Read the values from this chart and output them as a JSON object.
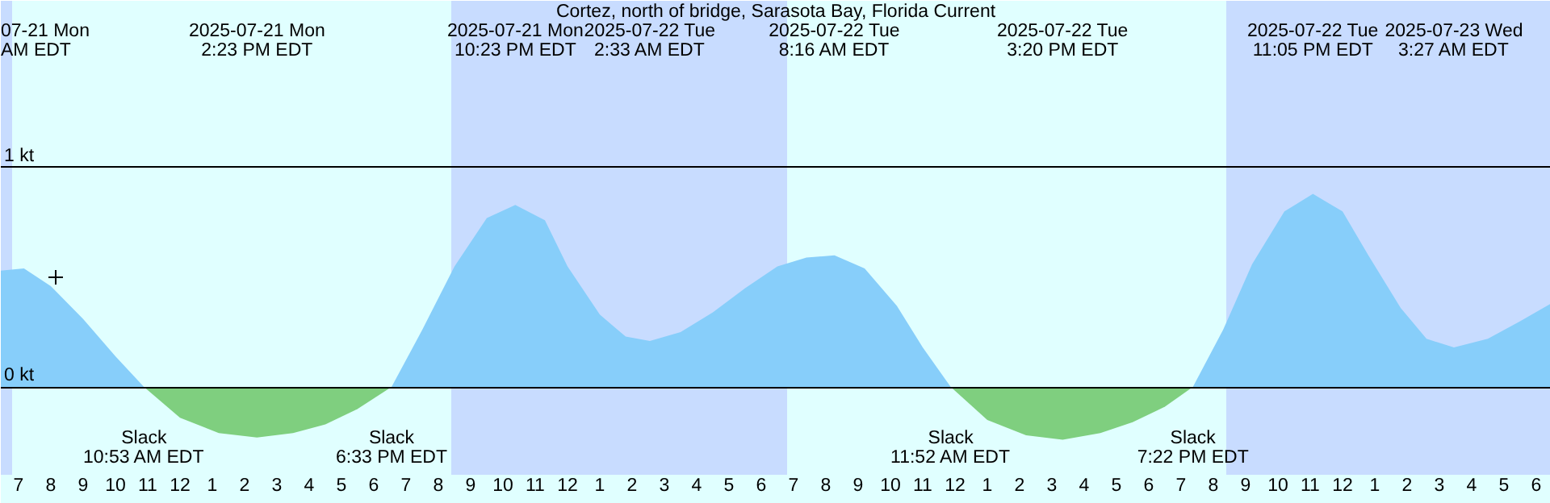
{
  "chart_data": {
    "type": "area",
    "title": "Cortez, north of bridge, Sarasota Bay, Florida Current",
    "xlim": [
      "2025-07-21T06:27",
      "2025-07-23T06:27"
    ],
    "ylim": [
      -0.4,
      1.76
    ],
    "xticks": [
      {
        "value": "2025-07-21T07:00",
        "label": "7"
      },
      {
        "value": "2025-07-21T08:00",
        "label": "8"
      },
      {
        "value": "2025-07-21T09:00",
        "label": "9"
      },
      {
        "value": "2025-07-21T10:00",
        "label": "10"
      },
      {
        "value": "2025-07-21T11:00",
        "label": "11"
      },
      {
        "value": "2025-07-21T12:00",
        "label": "12"
      },
      {
        "value": "2025-07-21T13:00",
        "label": "1"
      },
      {
        "value": "2025-07-21T14:00",
        "label": "2"
      },
      {
        "value": "2025-07-21T15:00",
        "label": "3"
      },
      {
        "value": "2025-07-21T16:00",
        "label": "4"
      },
      {
        "value": "2025-07-21T17:00",
        "label": "5"
      },
      {
        "value": "2025-07-21T18:00",
        "label": "6"
      },
      {
        "value": "2025-07-21T19:00",
        "label": "7"
      },
      {
        "value": "2025-07-21T20:00",
        "label": "8"
      },
      {
        "value": "2025-07-21T21:00",
        "label": "9"
      },
      {
        "value": "2025-07-21T22:00",
        "label": "10"
      },
      {
        "value": "2025-07-21T23:00",
        "label": "11"
      },
      {
        "value": "2025-07-22T00:00",
        "label": "12"
      },
      {
        "value": "2025-07-22T01:00",
        "label": "1"
      },
      {
        "value": "2025-07-22T02:00",
        "label": "2"
      },
      {
        "value": "2025-07-22T03:00",
        "label": "3"
      },
      {
        "value": "2025-07-22T04:00",
        "label": "4"
      },
      {
        "value": "2025-07-22T05:00",
        "label": "5"
      },
      {
        "value": "2025-07-22T06:00",
        "label": "6"
      },
      {
        "value": "2025-07-22T07:00",
        "label": "7"
      },
      {
        "value": "2025-07-22T08:00",
        "label": "8"
      },
      {
        "value": "2025-07-22T09:00",
        "label": "9"
      },
      {
        "value": "2025-07-22T10:00",
        "label": "10"
      },
      {
        "value": "2025-07-22T11:00",
        "label": "11"
      },
      {
        "value": "2025-07-22T12:00",
        "label": "12"
      },
      {
        "value": "2025-07-22T13:00",
        "label": "1"
      },
      {
        "value": "2025-07-22T14:00",
        "label": "2"
      },
      {
        "value": "2025-07-22T15:00",
        "label": "3"
      },
      {
        "value": "2025-07-22T16:00",
        "label": "4"
      },
      {
        "value": "2025-07-22T17:00",
        "label": "5"
      },
      {
        "value": "2025-07-22T18:00",
        "label": "6"
      },
      {
        "value": "2025-07-22T19:00",
        "label": "7"
      },
      {
        "value": "2025-07-22T20:00",
        "label": "8"
      },
      {
        "value": "2025-07-22T21:00",
        "label": "9"
      },
      {
        "value": "2025-07-22T22:00",
        "label": "10"
      },
      {
        "value": "2025-07-22T23:00",
        "label": "11"
      },
      {
        "value": "2025-07-23T00:00",
        "label": "12"
      },
      {
        "value": "2025-07-23T01:00",
        "label": "1"
      },
      {
        "value": "2025-07-23T02:00",
        "label": "2"
      },
      {
        "value": "2025-07-23T03:00",
        "label": "3"
      },
      {
        "value": "2025-07-23T04:00",
        "label": "4"
      },
      {
        "value": "2025-07-23T05:00",
        "label": "5"
      },
      {
        "value": "2025-07-23T06:00",
        "label": "6"
      }
    ],
    "yticks": [
      {
        "value": 0,
        "label": "0 kt"
      },
      {
        "value": 1,
        "label": "1 kt"
      }
    ],
    "grid": "y",
    "bands": [
      {
        "axis": "x",
        "from": "2025-07-21T06:27",
        "to": "2025-07-21T06:48",
        "color": "#c8dcff"
      },
      {
        "axis": "x",
        "from": "2025-07-21T20:24",
        "to": "2025-07-22T06:48",
        "color": "#c8dcff"
      },
      {
        "axis": "x",
        "from": "2025-07-22T20:24",
        "to": "2025-07-23T06:27",
        "color": "#c8dcff"
      }
    ],
    "series": [
      {
        "color": "#87cefa",
        "x": [
          "2025-07-21T06:27",
          "2025-07-21T07:10",
          "2025-07-21T08:00",
          "2025-07-21T09:00",
          "2025-07-21T10:00",
          "2025-07-21T10:53",
          "2025-07-21T18:33",
          "2025-07-21T19:30",
          "2025-07-21T20:30",
          "2025-07-21T21:30",
          "2025-07-21T22:23",
          "2025-07-21T23:18",
          "2025-07-22T00:00",
          "2025-07-22T01:00",
          "2025-07-22T01:48",
          "2025-07-22T02:33",
          "2025-07-22T03:30",
          "2025-07-22T04:30",
          "2025-07-22T05:30",
          "2025-07-22T06:30",
          "2025-07-22T07:24",
          "2025-07-22T08:16",
          "2025-07-22T09:12",
          "2025-07-22T10:12",
          "2025-07-22T11:00",
          "2025-07-22T11:52",
          "2025-07-22T19:22",
          "2025-07-22T20:18",
          "2025-07-22T21:12",
          "2025-07-22T22:12",
          "2025-07-22T23:05",
          "2025-07-23T00:00",
          "2025-07-23T00:48",
          "2025-07-23T01:48",
          "2025-07-23T02:36",
          "2025-07-23T03:27",
          "2025-07-23T04:30",
          "2025-07-23T05:30",
          "2025-07-23T06:27"
        ],
        "values": [
          0.53,
          0.54,
          0.46,
          0.31,
          0.14,
          0,
          0,
          0.26,
          0.55,
          0.77,
          0.83,
          0.76,
          0.55,
          0.33,
          0.23,
          0.21,
          0.25,
          0.34,
          0.45,
          0.55,
          0.59,
          0.6,
          0.54,
          0.37,
          0.18,
          0,
          0,
          0.26,
          0.56,
          0.8,
          0.88,
          0.8,
          0.6,
          0.36,
          0.22,
          0.18,
          0.22,
          0.3,
          0.38
        ]
      },
      {
        "color": "#7fcf7f",
        "x": [
          "2025-07-21T10:53",
          "2025-07-21T12:00",
          "2025-07-21T13:12",
          "2025-07-21T14:23",
          "2025-07-21T15:30",
          "2025-07-21T16:30",
          "2025-07-21T17:30",
          "2025-07-21T18:33",
          null,
          "2025-07-22T11:52",
          "2025-07-22T13:00",
          "2025-07-22T14:12",
          "2025-07-22T15:20",
          "2025-07-22T16:30",
          "2025-07-22T17:30",
          "2025-07-22T18:30",
          "2025-07-22T19:22"
        ],
        "values": [
          0,
          -0.14,
          -0.21,
          -0.23,
          -0.21,
          -0.17,
          -0.1,
          0,
          null,
          0,
          -0.15,
          -0.22,
          -0.24,
          -0.21,
          -0.16,
          -0.09,
          0
        ]
      },
      {
        "type": "scatter",
        "marker": "cross",
        "color": "#000000",
        "x": [
          "2025-07-21T08:09"
        ],
        "values": [
          0.5
        ]
      }
    ],
    "annotations": [
      "07-21 Mon\nAM EDT",
      "2025-07-21 Mon\n2:23 PM EDT",
      "2025-07-21 Mon\n10:23 PM EDT",
      "2025-07-22 Tue\n2:33 AM EDT",
      "2025-07-22 Tue\n8:16 AM EDT",
      "2025-07-22 Tue\n3:20 PM EDT",
      "2025-07-22 Tue\n11:05 PM EDT",
      "2025-07-23 Wed\n3:27 AM EDT",
      {
        "text": "Slack\n10:53 AM EDT",
        "x": "2025-07-21T10:53",
        "y": 0
      },
      {
        "text": "Slack\n6:33 PM EDT",
        "x": "2025-07-21T18:33",
        "y": 0
      },
      {
        "text": "Slack\n11:52 AM EDT",
        "x": "2025-07-22T11:52",
        "y": 0
      },
      {
        "text": "Slack\n7:22 PM EDT",
        "x": "2025-07-22T19:22",
        "y": 0
      }
    ]
  }
}
